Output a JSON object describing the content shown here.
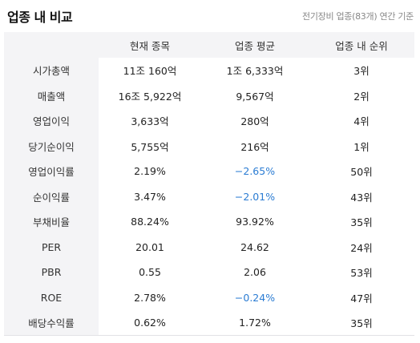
{
  "header": {
    "title": "업종 내 비교",
    "subtitle": "전기장비 업종(83개) 연간 기준"
  },
  "table": {
    "columns": [
      "",
      "현재 종목",
      "업종 평균",
      "업종 내 순위"
    ],
    "rows": [
      {
        "metric": "시가총액",
        "current": "11조 160억",
        "average": "1조 6,333억",
        "rank": "3위",
        "average_negative": false
      },
      {
        "metric": "매출액",
        "current": "16조 5,922억",
        "average": "9,567억",
        "rank": "2위",
        "average_negative": false
      },
      {
        "metric": "영업이익",
        "current": "3,633억",
        "average": "280억",
        "rank": "4위",
        "average_negative": false
      },
      {
        "metric": "당기순이익",
        "current": "5,755억",
        "average": "216억",
        "rank": "1위",
        "average_negative": false
      },
      {
        "metric": "영업이익률",
        "current": "2.19%",
        "average": "−2.65%",
        "rank": "50위",
        "average_negative": true
      },
      {
        "metric": "순이익률",
        "current": "3.47%",
        "average": "−2.01%",
        "rank": "43위",
        "average_negative": true
      },
      {
        "metric": "부채비율",
        "current": "88.24%",
        "average": "93.92%",
        "rank": "35위",
        "average_negative": false
      },
      {
        "metric": "PER",
        "current": "20.01",
        "average": "24.62",
        "rank": "24위",
        "average_negative": false
      },
      {
        "metric": "PBR",
        "current": "0.55",
        "average": "2.06",
        "rank": "53위",
        "average_negative": false
      },
      {
        "metric": "ROE",
        "current": "2.78%",
        "average": "−0.24%",
        "rank": "47위",
        "average_negative": true
      },
      {
        "metric": "배당수익률",
        "current": "0.62%",
        "average": "1.72%",
        "rank": "35위",
        "average_negative": false
      }
    ]
  },
  "colors": {
    "negative": "#2b7cd3",
    "header_bg": "#f4f4f6"
  }
}
